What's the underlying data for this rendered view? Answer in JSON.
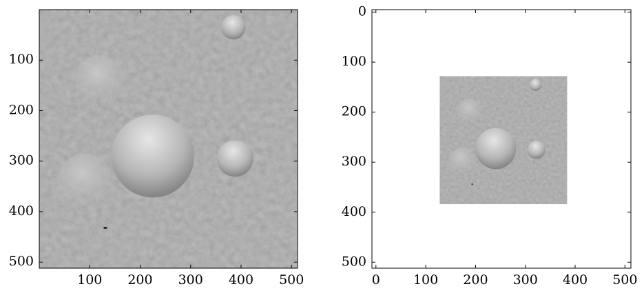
{
  "chart_data": [
    {
      "type": "image",
      "extent": [
        0,
        512,
        512,
        0
      ],
      "xlim": [
        0,
        512
      ],
      "ylim": [
        512,
        0
      ],
      "xticks": [
        100,
        200,
        300,
        400,
        500
      ],
      "yticks": [
        100,
        200,
        300,
        400,
        500
      ]
    },
    {
      "type": "image",
      "extent": [
        128,
        384,
        384,
        128
      ],
      "xlim": [
        -8,
        512
      ],
      "ylim": [
        512,
        -5
      ],
      "xticks": [
        0,
        100,
        200,
        300,
        400,
        500
      ],
      "yticks": [
        0,
        100,
        200,
        300,
        400,
        500
      ]
    }
  ]
}
